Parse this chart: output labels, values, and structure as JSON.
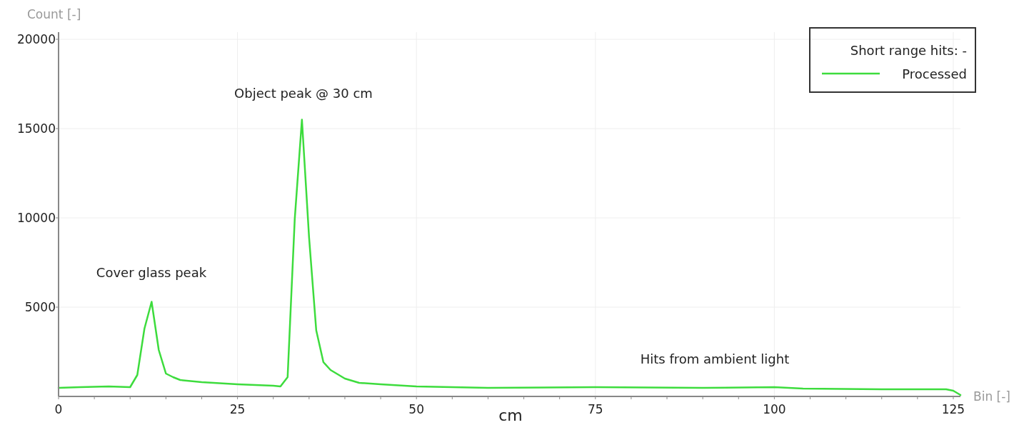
{
  "chart_data": {
    "type": "line",
    "xlabel": "Bin [-]",
    "ylabel": "Count [-]",
    "legend_title": "Short range hits: -",
    "legend": "top right",
    "grid": true,
    "xlim": [
      0,
      126
    ],
    "ylim": [
      0,
      20400
    ],
    "xticks": [
      0,
      {
        "value": 5,
        "label": null
      },
      {
        "value": 10,
        "label": null
      },
      {
        "value": 15,
        "label": null
      },
      {
        "value": 20,
        "label": null
      },
      25,
      {
        "value": 30,
        "label": null
      },
      {
        "value": 35,
        "label": null
      },
      {
        "value": 40,
        "label": null
      },
      {
        "value": 45,
        "label": null
      },
      50,
      {
        "value": 55,
        "label": null
      },
      {
        "value": 60,
        "label": null
      },
      {
        "value": 65,
        "label": null
      },
      {
        "value": 70,
        "label": null
      },
      75,
      {
        "value": 80,
        "label": null
      },
      {
        "value": 85,
        "label": null
      },
      {
        "value": 90,
        "label": null
      },
      {
        "value": 95,
        "label": null
      },
      100,
      {
        "value": 105,
        "label": null
      },
      {
        "value": 110,
        "label": null
      },
      {
        "value": 115,
        "label": null
      },
      {
        "value": 120,
        "label": null
      },
      125
    ],
    "yticks": [
      5000,
      10000,
      15000,
      20000
    ],
    "x": [
      0,
      3,
      7,
      10,
      11,
      12,
      13,
      14,
      15,
      16,
      17,
      20,
      25,
      30,
      31,
      32,
      33,
      34,
      35,
      36,
      37,
      38,
      40,
      42,
      45,
      50,
      60,
      75,
      90,
      100,
      104,
      115,
      124,
      125,
      126
    ],
    "series": [
      {
        "name": "Processed",
        "color": "#3ddc3d",
        "values": [
          480,
          520,
          560,
          520,
          1200,
          3800,
          5300,
          2600,
          1280,
          1080,
          920,
          800,
          680,
          600,
          560,
          1080,
          9950,
          15500,
          8900,
          3700,
          1920,
          1480,
          1000,
          760,
          680,
          560,
          480,
          520,
          480,
          520,
          440,
          400,
          400,
          320,
          80
        ]
      }
    ],
    "annotations": [
      "Cover glass peak",
      "Object peak @ 30 cm",
      "Hits from ambient light",
      "cm"
    ]
  }
}
